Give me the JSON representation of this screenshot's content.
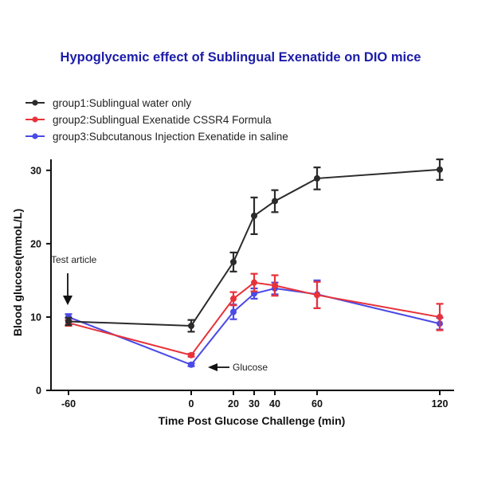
{
  "chart_data": {
    "type": "line",
    "title": "Hypoglycemic effect of Sublingual Exenatide on DIO mice",
    "xlabel": "Time Post Glucose Challenge (min)",
    "ylabel": "Blood glucose(mmoL/L)",
    "x": [
      -60,
      0,
      20,
      30,
      40,
      60,
      120
    ],
    "x_tick_labels": [
      "-60",
      "0",
      "20",
      "30",
      "40",
      "60",
      "120"
    ],
    "y_ticks": [
      0,
      10,
      20,
      30
    ],
    "ylim": [
      0,
      31.5
    ],
    "grid": false,
    "legend_position": "top-left",
    "series": [
      {
        "name": "group1:Sublingual water only",
        "color": "#2b2b2b",
        "values": [
          9.4,
          8.8,
          17.5,
          23.8,
          25.8,
          28.9,
          30.1
        ],
        "errors": [
          0.5,
          0.8,
          1.3,
          2.5,
          1.5,
          1.5,
          1.4
        ]
      },
      {
        "name": "group2:Sublingual Exenatide CSSR4 Formula",
        "color": "#e8323a",
        "values": [
          9.2,
          4.8,
          12.5,
          14.7,
          14.3,
          13.0,
          10.0
        ],
        "errors": [
          0.4,
          0.2,
          0.9,
          1.2,
          1.4,
          1.8,
          1.8
        ]
      },
      {
        "name": "group3:Subcutanous Injection Exenatide in saline",
        "color": "#4a4ae6",
        "values": [
          10.0,
          3.5,
          10.7,
          13.2,
          13.9,
          13.1,
          9.1
        ],
        "errors": [
          0.4,
          0.2,
          1.0,
          0.7,
          0.8,
          1.9,
          0.8
        ]
      }
    ],
    "annotations": [
      {
        "text": "Test article",
        "target_x": -60,
        "target_y": 11.5
      },
      {
        "text": "Glucose",
        "target_x": 0,
        "target_y": 3.2
      }
    ]
  }
}
